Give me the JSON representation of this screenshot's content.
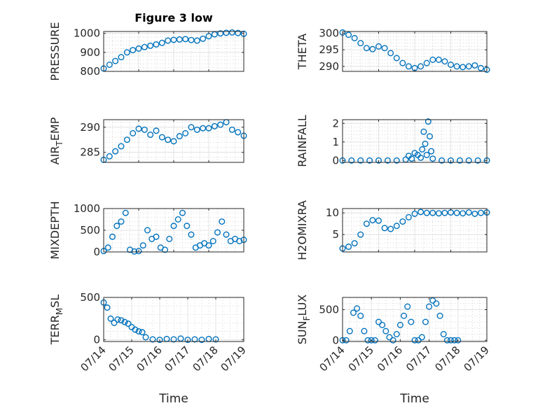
{
  "figure_title": "Figure 3 low",
  "colors": {
    "marker": "#0072BD",
    "axes": "#262626",
    "grid": "#d4d4d4",
    "background": "#ffffff"
  },
  "chart_data": [
    {
      "type": "scatter",
      "marker": "open-circle",
      "title": "Figure 3 low",
      "ylabel": "PRESSURE",
      "xlabel": "",
      "xlim": [
        "07/14",
        "07/18"
      ],
      "ylim": [
        800,
        1010
      ],
      "yticks": [
        800,
        900,
        1000
      ],
      "ytick_labels": [
        "800",
        "900",
        "1000"
      ],
      "xticks": [
        "07/14",
        "07/15",
        "07/16",
        "07/17",
        "07/18"
      ],
      "xtick_labels_shown": false,
      "grid": "major+minor",
      "x": [
        "07/14 00:00",
        "07/14 04:00",
        "07/14 08:00",
        "07/14 12:00",
        "07/14 16:00",
        "07/14 20:00",
        "07/15 00:00",
        "07/15 04:00",
        "07/15 08:00",
        "07/15 12:00",
        "07/15 16:00",
        "07/15 20:00",
        "07/16 00:00",
        "07/16 04:00",
        "07/16 08:00",
        "07/16 12:00",
        "07/16 16:00",
        "07/16 20:00",
        "07/17 00:00",
        "07/17 04:00",
        "07/17 08:00",
        "07/17 12:00",
        "07/17 16:00",
        "07/17 20:00",
        "07/18 00:00"
      ],
      "y": [
        815,
        835,
        855,
        875,
        900,
        912,
        920,
        928,
        935,
        942,
        950,
        962,
        966,
        968,
        970,
        965,
        962,
        972,
        985,
        995,
        1000,
        1003,
        1005,
        1002,
        998
      ]
    },
    {
      "type": "scatter",
      "marker": "open-circle",
      "title": "",
      "ylabel": "THETA",
      "xlabel": "",
      "xlim": [
        "07/14",
        "07/18"
      ],
      "ylim": [
        288.5,
        300.5
      ],
      "yticks": [
        290,
        295,
        300
      ],
      "ytick_labels": [
        "290",
        "295",
        "300"
      ],
      "xticks": [
        "07/15",
        "07/16",
        "07/17",
        "07/18"
      ],
      "xtick_labels_shown": false,
      "grid": "major+minor",
      "x": [
        "07/14 00:00",
        "07/14 04:00",
        "07/14 08:00",
        "07/14 12:00",
        "07/14 16:00",
        "07/14 20:00",
        "07/15 00:00",
        "07/15 04:00",
        "07/15 08:00",
        "07/15 12:00",
        "07/15 16:00",
        "07/15 20:00",
        "07/16 00:00",
        "07/16 04:00",
        "07/16 08:00",
        "07/16 12:00",
        "07/16 16:00",
        "07/16 20:00",
        "07/17 00:00",
        "07/17 04:00",
        "07/17 08:00",
        "07/17 12:00",
        "07/17 16:00",
        "07/17 20:00",
        "07/18 00:00"
      ],
      "y": [
        300.2,
        299.5,
        298.5,
        297,
        295.5,
        295.2,
        296,
        295.5,
        294,
        292.5,
        291,
        290,
        289.5,
        290,
        291,
        292,
        292,
        291.5,
        290.5,
        290,
        289.8,
        290,
        290.3,
        289.5,
        289
      ]
    },
    {
      "type": "scatter",
      "marker": "open-circle",
      "title": "",
      "ylabel": "AIR_TEMP",
      "ylabel_display": {
        "main": "AIR",
        "sub": "T",
        "rest": "EMP"
      },
      "xlabel": "",
      "xlim": [
        "07/14",
        "07/18"
      ],
      "ylim": [
        283,
        291.5
      ],
      "yticks": [
        285,
        290
      ],
      "ytick_labels": [
        "285",
        "290"
      ],
      "xticks": [
        "07/15",
        "07/16",
        "07/17",
        "07/18"
      ],
      "xtick_labels_shown": false,
      "grid": "major+minor",
      "x": [
        "07/14 00:00",
        "07/14 04:00",
        "07/14 08:00",
        "07/14 12:00",
        "07/14 16:00",
        "07/14 20:00",
        "07/15 00:00",
        "07/15 04:00",
        "07/15 08:00",
        "07/15 12:00",
        "07/15 16:00",
        "07/15 20:00",
        "07/16 00:00",
        "07/16 04:00",
        "07/16 08:00",
        "07/16 12:00",
        "07/16 16:00",
        "07/16 20:00",
        "07/17 00:00",
        "07/17 04:00",
        "07/17 08:00",
        "07/17 12:00",
        "07/17 16:00",
        "07/17 20:00",
        "07/18 00:00"
      ],
      "y": [
        283.5,
        284.2,
        285.2,
        286.2,
        287.5,
        288.8,
        289.7,
        289.5,
        288.5,
        289.3,
        288,
        287.5,
        287.2,
        288.2,
        288.8,
        290,
        289.5,
        289.8,
        289.8,
        290.2,
        290.5,
        291,
        289.5,
        289,
        288.3
      ]
    },
    {
      "type": "scatter",
      "marker": "open-circle",
      "title": "",
      "ylabel": "RAINFALL",
      "xlabel": "",
      "xlim": [
        "07/14",
        "07/18"
      ],
      "ylim": [
        -0.1,
        2.2
      ],
      "yticks": [
        0,
        1,
        2
      ],
      "ytick_labels": [
        "0",
        "1",
        "2"
      ],
      "xticks": [
        "07/15",
        "07/16",
        "07/17",
        "07/18"
      ],
      "xtick_labels_shown": false,
      "grid": "major+minor",
      "x": [
        "07/14 00:00",
        "07/14 06:00",
        "07/14 12:00",
        "07/14 18:00",
        "07/15 00:00",
        "07/15 06:00",
        "07/15 12:00",
        "07/15 18:00",
        "07/15 20:00",
        "07/15 22:00",
        "07/16 00:00",
        "07/16 02:00",
        "07/16 04:00",
        "07/16 05:00",
        "07/16 06:00",
        "07/16 07:00",
        "07/16 08:00",
        "07/16 09:00",
        "07/16 10:00",
        "07/16 11:00",
        "07/16 12:00",
        "07/16 18:00",
        "07/17 00:00",
        "07/17 06:00",
        "07/17 12:00",
        "07/17 18:00",
        "07/18 00:00"
      ],
      "y": [
        0,
        0,
        0,
        0,
        0,
        0,
        0,
        0.05,
        0.25,
        0.1,
        0.4,
        0.3,
        0.15,
        0.6,
        1.55,
        0.9,
        0.3,
        2.1,
        1.3,
        0.5,
        0.1,
        0,
        0,
        0,
        0,
        0,
        0
      ]
    },
    {
      "type": "scatter",
      "marker": "open-circle",
      "title": "",
      "ylabel": "MIXDEPTH",
      "xlabel": "",
      "xlim": [
        "07/14",
        "07/18"
      ],
      "ylim": [
        0,
        1000
      ],
      "yticks": [
        0,
        500,
        1000
      ],
      "ytick_labels": [
        "0",
        "500",
        "1000"
      ],
      "xticks": [
        "07/15",
        "07/16",
        "07/17",
        "07/18"
      ],
      "xtick_labels_shown": false,
      "grid": "major+minor",
      "x": [
        "07/14 00:00",
        "07/14 03:00",
        "07/14 06:00",
        "07/14 09:00",
        "07/14 12:00",
        "07/14 15:00",
        "07/14 18:00",
        "07/14 21:00",
        "07/15 00:00",
        "07/15 03:00",
        "07/15 06:00",
        "07/15 09:00",
        "07/15 12:00",
        "07/15 15:00",
        "07/15 18:00",
        "07/15 21:00",
        "07/16 00:00",
        "07/16 03:00",
        "07/16 06:00",
        "07/16 09:00",
        "07/16 12:00",
        "07/16 15:00",
        "07/16 18:00",
        "07/16 21:00",
        "07/17 00:00",
        "07/17 03:00",
        "07/17 06:00",
        "07/17 09:00",
        "07/17 12:00",
        "07/17 15:00",
        "07/17 18:00",
        "07/17 21:00",
        "07/18 00:00"
      ],
      "y": [
        20,
        100,
        350,
        600,
        700,
        900,
        50,
        10,
        20,
        150,
        500,
        300,
        350,
        100,
        50,
        300,
        600,
        750,
        900,
        600,
        400,
        100,
        150,
        200,
        150,
        250,
        450,
        700,
        400,
        250,
        300,
        250,
        280
      ]
    },
    {
      "type": "scatter",
      "marker": "open-circle",
      "title": "",
      "ylabel": "H2OMIXRA",
      "xlabel": "",
      "xlim": [
        "07/14",
        "07/18"
      ],
      "ylim": [
        1,
        11
      ],
      "yticks": [
        5,
        10
      ],
      "ytick_labels": [
        "5",
        "10"
      ],
      "xticks": [
        "07/15",
        "07/16",
        "07/17",
        "07/18"
      ],
      "xtick_labels_shown": false,
      "grid": "major+minor",
      "x": [
        "07/14 00:00",
        "07/14 04:00",
        "07/14 08:00",
        "07/14 12:00",
        "07/14 16:00",
        "07/14 20:00",
        "07/15 00:00",
        "07/15 04:00",
        "07/15 08:00",
        "07/15 12:00",
        "07/15 16:00",
        "07/15 20:00",
        "07/16 00:00",
        "07/16 04:00",
        "07/16 08:00",
        "07/16 12:00",
        "07/16 16:00",
        "07/16 20:00",
        "07/17 00:00",
        "07/17 04:00",
        "07/17 08:00",
        "07/17 12:00",
        "07/17 16:00",
        "07/17 20:00",
        "07/18 00:00"
      ],
      "y": [
        1.8,
        2.2,
        3,
        5,
        7.5,
        8.3,
        8.2,
        6.5,
        6.3,
        7,
        8,
        9,
        9.8,
        10.2,
        10,
        10,
        9.9,
        10,
        10.1,
        10,
        9.9,
        10.1,
        9.8,
        10,
        10.1
      ]
    },
    {
      "type": "scatter",
      "marker": "open-circle",
      "title": "",
      "ylabel": "TERR_MSL",
      "ylabel_display": {
        "main": "TERR",
        "sub": "M",
        "rest": "SL"
      },
      "xlabel": "Time",
      "xlim": [
        "07/14",
        "07/19"
      ],
      "ylim": [
        -20,
        500
      ],
      "yticks": [
        0,
        500
      ],
      "ytick_labels": [
        "0",
        "500"
      ],
      "xticks": [
        "07/14",
        "07/15",
        "07/16",
        "07/17",
        "07/18",
        "07/19"
      ],
      "xtick_labels": [
        "07/14",
        "07/15",
        "07/16",
        "07/17",
        "07/18",
        "07/19"
      ],
      "xtick_labels_shown": true,
      "grid": "major+minor",
      "x": [
        "07/14 00:00",
        "07/14 03:00",
        "07/14 06:00",
        "07/14 09:00",
        "07/14 12:00",
        "07/14 15:00",
        "07/14 18:00",
        "07/14 21:00",
        "07/15 00:00",
        "07/15 03:00",
        "07/15 06:00",
        "07/15 09:00",
        "07/15 12:00",
        "07/15 18:00",
        "07/16 00:00",
        "07/16 06:00",
        "07/16 12:00",
        "07/16 18:00",
        "07/17 00:00",
        "07/17 06:00",
        "07/17 12:00",
        "07/17 18:00",
        "07/18 00:00"
      ],
      "y": [
        440,
        380,
        250,
        200,
        240,
        230,
        210,
        190,
        150,
        120,
        100,
        90,
        30,
        5,
        0,
        10,
        5,
        15,
        0,
        5,
        0,
        10,
        5
      ]
    },
    {
      "type": "scatter",
      "marker": "open-circle",
      "title": "",
      "ylabel": "SUN_FLUX",
      "ylabel_display": {
        "main": "SUN",
        "sub": "F",
        "rest": "LUX"
      },
      "xlabel": "Time",
      "xlim": [
        "07/14",
        "07/19"
      ],
      "ylim": [
        -20,
        700
      ],
      "yticks": [
        0,
        500
      ],
      "ytick_labels": [
        "0",
        "500"
      ],
      "xticks": [
        "07/14",
        "07/15",
        "07/16",
        "07/17",
        "07/18",
        "07/19"
      ],
      "xtick_labels": [
        "07/14",
        "07/15",
        "07/16",
        "07/17",
        "07/18",
        "07/19"
      ],
      "xtick_labels_shown": true,
      "grid": "major+minor",
      "x": [
        "07/14 00:00",
        "07/14 03:00",
        "07/14 06:00",
        "07/14 09:00",
        "07/14 12:00",
        "07/14 15:00",
        "07/14 18:00",
        "07/14 21:00",
        "07/15 00:00",
        "07/15 03:00",
        "07/15 06:00",
        "07/15 09:00",
        "07/15 12:00",
        "07/15 15:00",
        "07/15 18:00",
        "07/15 21:00",
        "07/16 00:00",
        "07/16 03:00",
        "07/16 06:00",
        "07/16 09:00",
        "07/16 12:00",
        "07/16 15:00",
        "07/16 18:00",
        "07/16 21:00",
        "07/17 00:00",
        "07/17 03:00",
        "07/17 06:00",
        "07/17 09:00",
        "07/17 12:00",
        "07/17 15:00",
        "07/17 18:00",
        "07/17 21:00",
        "07/18 00:00"
      ],
      "y": [
        0,
        0,
        150,
        450,
        520,
        400,
        150,
        0,
        0,
        0,
        300,
        250,
        150,
        50,
        0,
        100,
        250,
        400,
        550,
        300,
        0,
        0,
        50,
        300,
        550,
        650,
        600,
        400,
        100,
        0,
        0,
        0,
        0
      ]
    }
  ]
}
